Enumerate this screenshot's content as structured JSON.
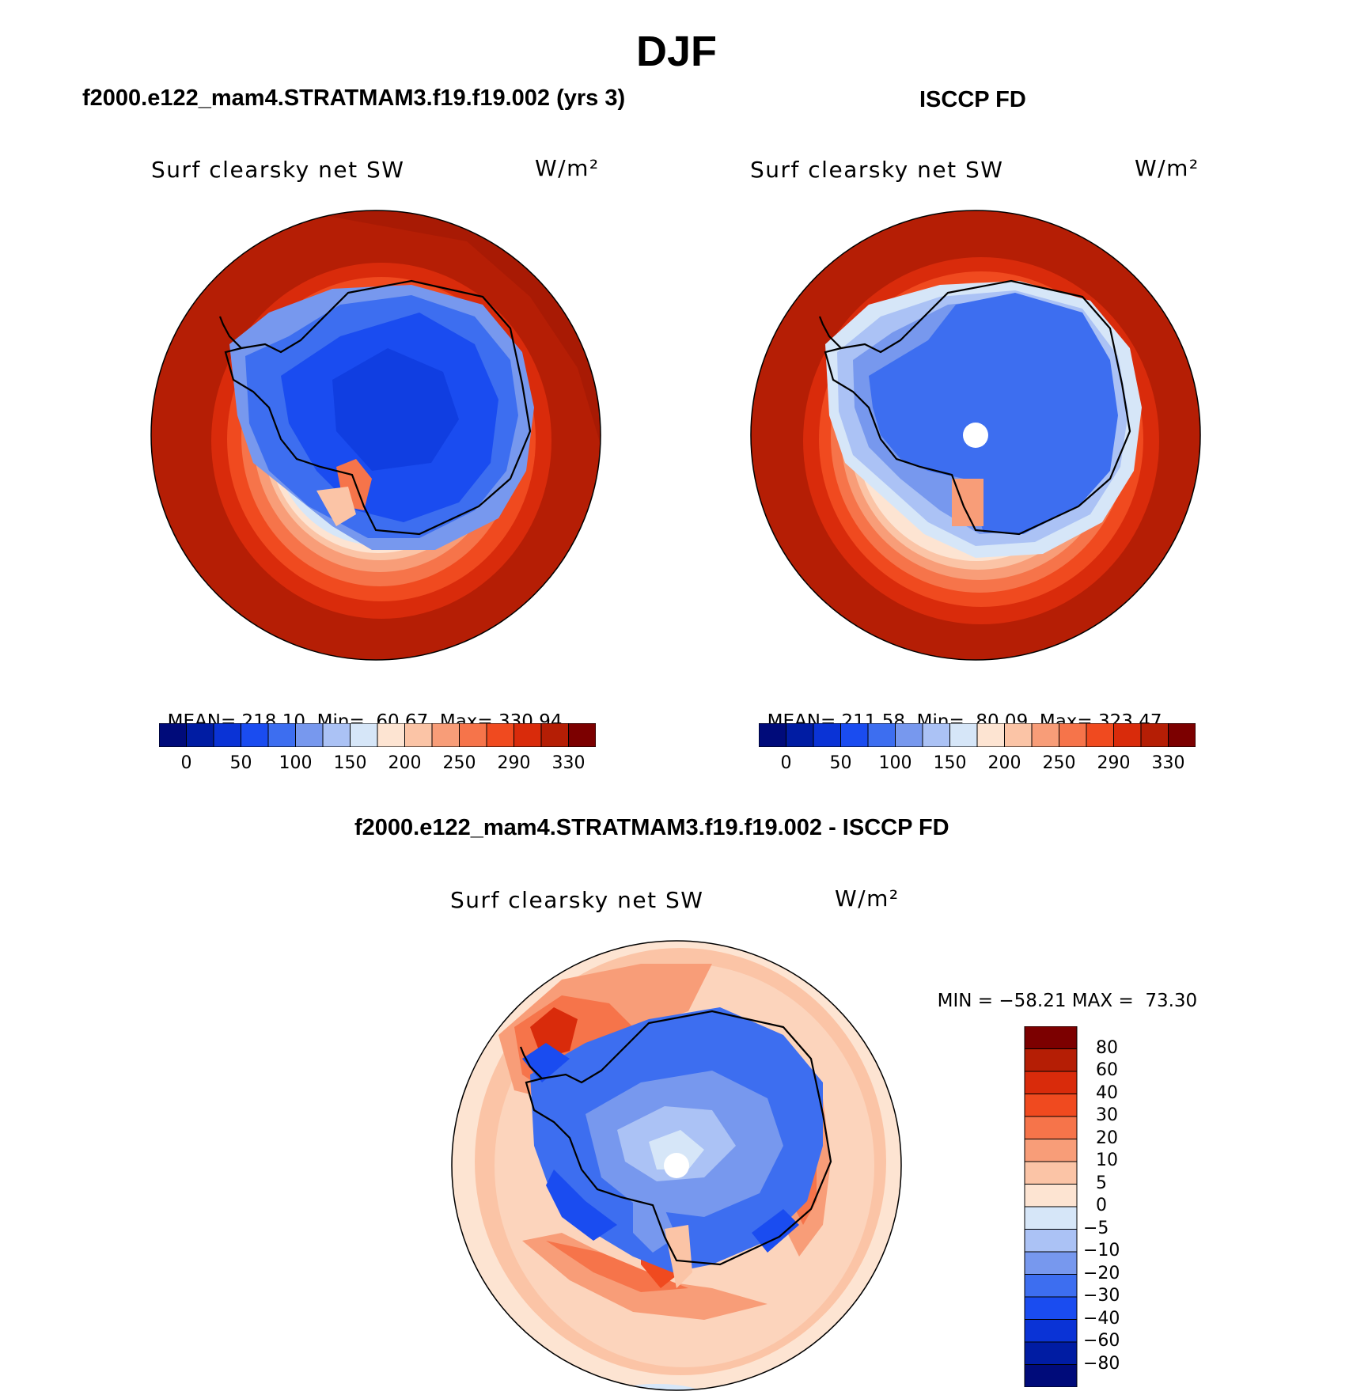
{
  "main_title": "DJF",
  "panels": [
    {
      "title": "f2000.e122_mam4.STRATMAM3.f19.f19.002 (yrs 3)",
      "variable": "Surf clearsky net SW",
      "units": "W/m²",
      "stats": {
        "mean_label": "MEAN=",
        "mean": "218.10",
        "min_label": "Min=",
        "min": "60.67",
        "max_label": "Max=",
        "max": "330.94"
      }
    },
    {
      "title": "ISCCP FD",
      "variable": "Surf clearsky net SW",
      "units": "W/m²",
      "stats": {
        "mean_label": "MEAN=",
        "mean": "211.58",
        "min_label": "Min=",
        "min": "80.09",
        "max_label": "Max=",
        "max": "323.47"
      }
    }
  ],
  "diff_panel": {
    "title": "f2000.e122_mam4.STRATMAM3.f19.f19.002 - ISCCP FD",
    "variable": "Surf clearsky net SW",
    "units": "W/m²",
    "stats": {
      "min_label": "MIN =",
      "min": "−58.21",
      "max_label": "MAX =",
      "max": "73.30"
    }
  },
  "colorbar_main": {
    "colors": [
      "#000b7a",
      "#001ca3",
      "#0a33d6",
      "#1a4cf0",
      "#3d6ef0",
      "#7798ee",
      "#abc2f5",
      "#d6e6f8",
      "#fde4d2",
      "#fbc4a6",
      "#f89d78",
      "#f6744a",
      "#f04a1f",
      "#d92b0b",
      "#b51e05",
      "#7c0000"
    ],
    "labels": [
      "0",
      "50",
      "100",
      "150",
      "200",
      "250",
      "290",
      "330"
    ]
  },
  "colorbar_diff": {
    "colors": [
      "#7c0000",
      "#b51e05",
      "#d92b0b",
      "#f04a1f",
      "#f6744a",
      "#f89d78",
      "#fbc4a6",
      "#fde4d2",
      "#d6e6f8",
      "#abc2f5",
      "#7798ee",
      "#3d6ef0",
      "#1a4cf0",
      "#0a33d6",
      "#001ca3",
      "#000b7a"
    ],
    "labels": [
      "80",
      "60",
      "40",
      "30",
      "20",
      "10",
      "5",
      "0",
      "−5",
      "−10",
      "−20",
      "−30",
      "−40",
      "−60",
      "−80"
    ]
  }
}
